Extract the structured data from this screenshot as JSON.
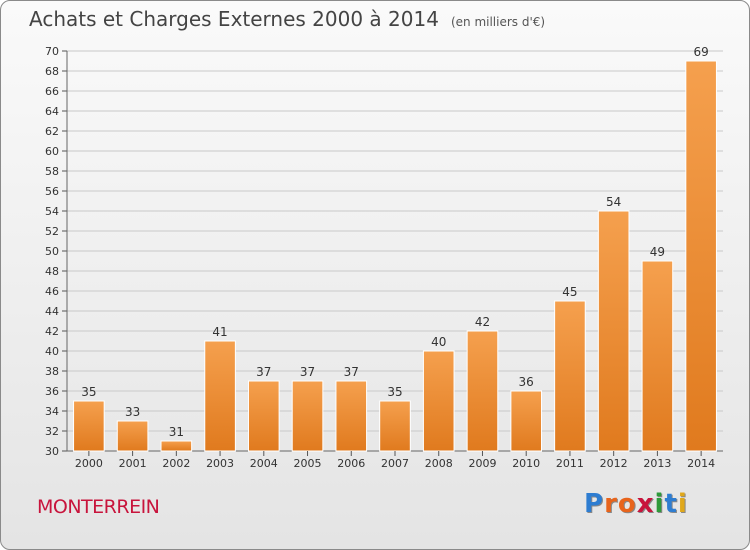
{
  "header": {
    "title": "Achats et Charges Externes 2000 à 2014",
    "unit": "(en milliers d'€)"
  },
  "commune": "MONTERREIN",
  "logo": {
    "text": "Proxiti",
    "letters": [
      "P",
      "r",
      "o",
      "x",
      "i",
      "t",
      "i"
    ],
    "colors": [
      "#2e7dd1",
      "#e8641c",
      "#e8641c",
      "#c8143c",
      "#2e9a3a",
      "#2e7dd1",
      "#e0a81c"
    ]
  },
  "colors": {
    "bar_top": "#f5a04e",
    "bar_bottom": "#e07a1e",
    "bar_stroke": "#ffffff",
    "grid": "#c9c9c9",
    "commune": "#c8143c"
  },
  "chart_data": {
    "type": "bar",
    "title": "Achats et Charges Externes 2000 à 2014",
    "subtitle": "(en milliers d'€)",
    "categories": [
      "2000",
      "2001",
      "2002",
      "2003",
      "2004",
      "2005",
      "2006",
      "2007",
      "2008",
      "2009",
      "2010",
      "2011",
      "2012",
      "2013",
      "2014"
    ],
    "values": [
      35,
      33,
      31,
      41,
      37,
      37,
      37,
      35,
      40,
      42,
      36,
      45,
      54,
      49,
      69
    ],
    "ylim": [
      30,
      70
    ],
    "yticks": [
      30,
      32,
      34,
      36,
      38,
      40,
      42,
      44,
      46,
      48,
      50,
      52,
      54,
      56,
      58,
      60,
      62,
      64,
      66,
      68,
      70
    ],
    "grid": true,
    "data_labels": true
  }
}
